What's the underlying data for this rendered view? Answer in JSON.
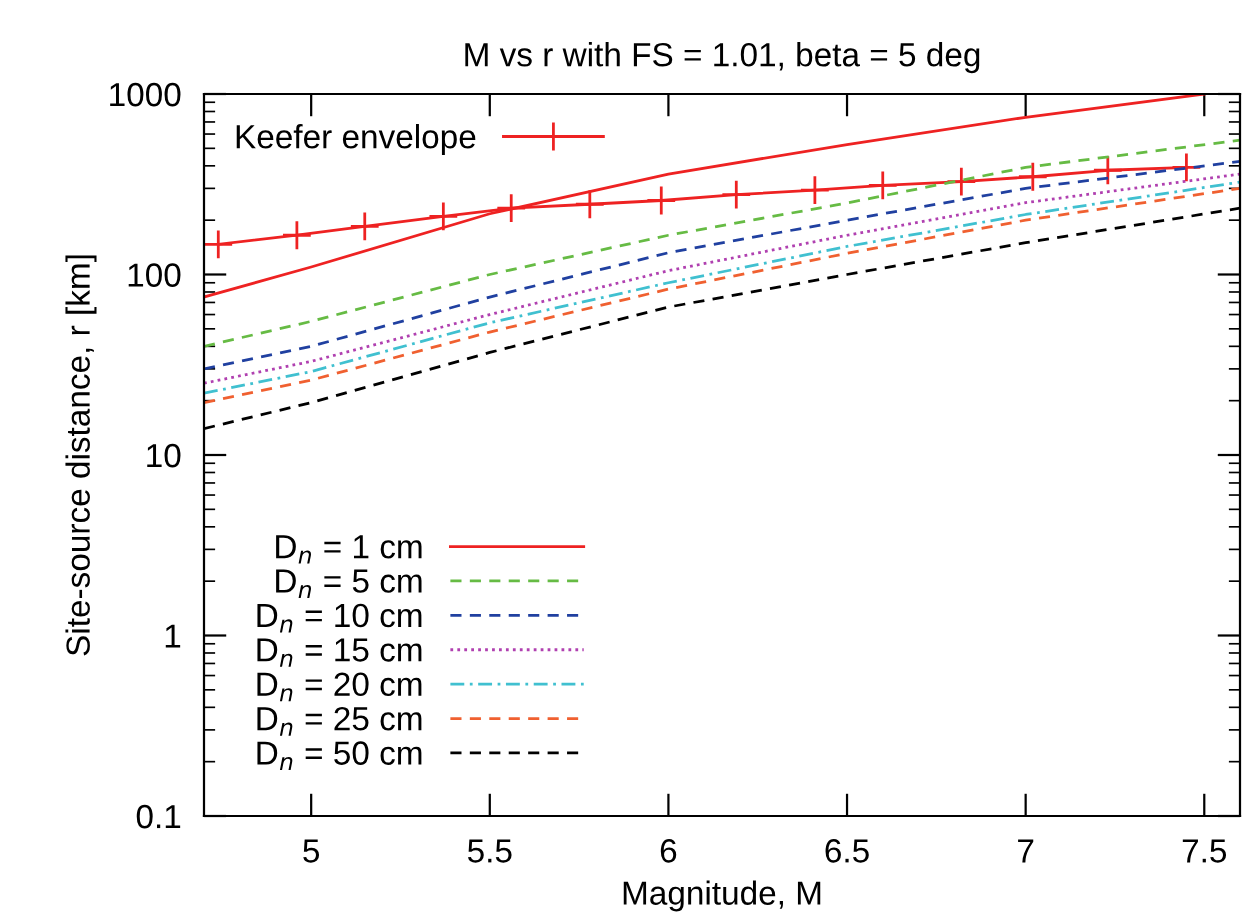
{
  "chart_data": {
    "type": "line",
    "title": "M vs r with FS = 1.01, beta = 5 deg",
    "xlabel": "Magnitude, M",
    "ylabel": "Site-source distance, r [km]",
    "xlim": [
      4.7,
      7.6
    ],
    "xticks": [
      5,
      5.5,
      6,
      6.5,
      7,
      7.5
    ],
    "ylim": [
      0.1,
      1000
    ],
    "yticks": [
      0.1,
      1,
      10,
      100,
      1000
    ],
    "log": "y",
    "grid": false,
    "legend": "left",
    "marker": "none",
    "series": [
      {
        "name": "Keefer envelope",
        "color": "#ee2222",
        "marker": "cross",
        "line_style": "solid",
        "x": [
          4.74,
          4.96,
          5.15,
          5.37,
          5.56,
          5.78,
          5.98,
          6.19,
          6.41,
          6.6,
          6.82,
          7.02,
          7.23,
          7.45
        ],
        "values": [
          147,
          165,
          185,
          210,
          233,
          245,
          257,
          277,
          293,
          312,
          327,
          348,
          378,
          392
        ]
      },
      {
        "name": "D$_{n}$ = 1 cm",
        "color": "#ee2222",
        "line_style": "solid",
        "x": [
          4.7,
          5,
          5.5,
          6,
          6.5,
          7,
          7.5
        ],
        "values": [
          75,
          110,
          217,
          360,
          525,
          743,
          1000
        ]
      },
      {
        "name": "D$_{n}$ = 5 cm",
        "color": "#66bb44",
        "line_style": "dashed",
        "x": [
          4.7,
          5,
          5.5,
          6,
          6.5,
          7,
          7.6
        ],
        "values": [
          40,
          55,
          100,
          165,
          249,
          392,
          555
        ]
      },
      {
        "name": "D$_{n}$ = 10 cm",
        "color": "#2040a0",
        "line_style": "dashed",
        "x": [
          4.7,
          5,
          5.5,
          6,
          6.5,
          7,
          7.6
        ],
        "values": [
          30,
          40,
          75,
          132,
          200,
          300,
          423
        ]
      },
      {
        "name": "D$_{n}$ = 15 cm",
        "color": "#b040b0",
        "line_style": "dotted",
        "x": [
          4.7,
          5,
          5.5,
          6,
          6.5,
          7,
          7.6
        ],
        "values": [
          25,
          33,
          60,
          105,
          165,
          250,
          360
        ]
      },
      {
        "name": "D$_{n}$ = 20 cm",
        "color": "#40c0d0",
        "line_style": "dashdot",
        "x": [
          4.7,
          5,
          5.5,
          6,
          6.5,
          7,
          7.6
        ],
        "values": [
          22,
          29,
          54,
          90,
          143,
          215,
          325
        ]
      },
      {
        "name": "D$_{n}$ = 25 cm",
        "color": "#f06030",
        "line_style": "dashed",
        "x": [
          4.7,
          5,
          5.5,
          6,
          6.5,
          7,
          7.6
        ],
        "values": [
          19.5,
          26,
          48,
          83,
          131,
          200,
          300
        ]
      },
      {
        "name": "D$_{n}$ = 50 cm",
        "color": "#000000",
        "line_style": "dashed",
        "x": [
          4.7,
          5,
          5.5,
          6,
          6.5,
          7,
          7.6
        ],
        "values": [
          14,
          19.5,
          37,
          66,
          100,
          150,
          233
        ]
      }
    ]
  }
}
